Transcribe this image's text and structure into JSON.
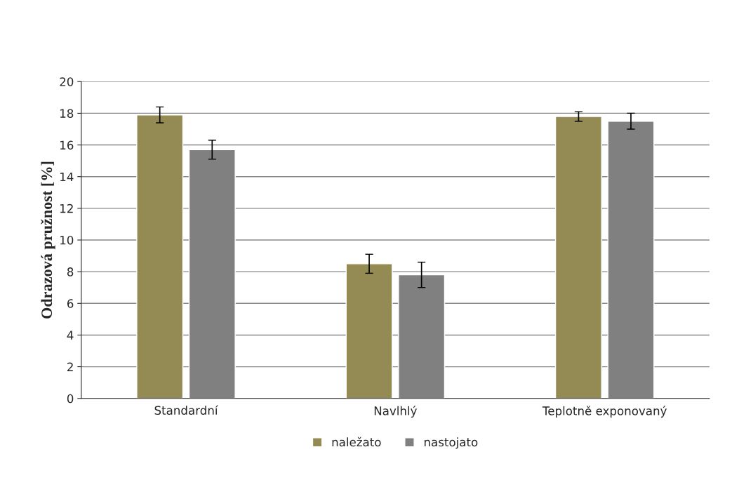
{
  "chart_data": {
    "type": "bar",
    "ylabel": "Odrazová pružnost [%]",
    "categories": [
      "Standardní",
      "Navlhlý",
      "Teplotně exponovaný"
    ],
    "series": [
      {
        "name": "naležato",
        "color": "#948a54",
        "values": [
          17.9,
          8.5,
          17.8
        ],
        "errors": [
          0.5,
          0.6,
          0.3
        ]
      },
      {
        "name": "nastojato",
        "color": "#808080",
        "values": [
          15.7,
          7.8,
          17.5
        ],
        "errors": [
          0.6,
          0.8,
          0.5
        ]
      }
    ],
    "ylim": [
      0,
      20
    ],
    "yticks": [
      0,
      2,
      4,
      6,
      8,
      10,
      12,
      14,
      16,
      18,
      20
    ],
    "grid": "y",
    "legend": "bottom"
  }
}
